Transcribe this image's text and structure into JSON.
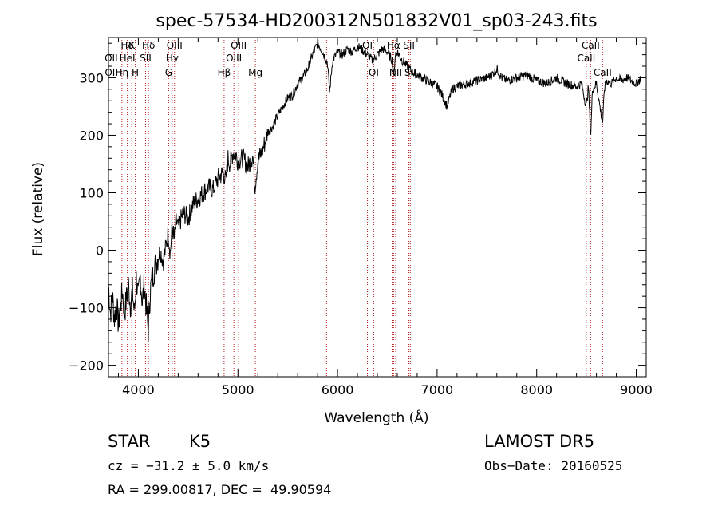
{
  "chart_data": {
    "type": "line",
    "title": "spec-57534-HD200312N501832V01_sp03-243.fits",
    "xlabel": "Wavelength (Å)",
    "ylabel": "Flux (relative)",
    "xlim": [
      3700,
      9100
    ],
    "ylim": [
      -220,
      370
    ],
    "xticks": [
      4000,
      5000,
      6000,
      7000,
      8000,
      9000
    ],
    "yticks": [
      -200,
      -100,
      0,
      100,
      200,
      300
    ],
    "grid": false,
    "line_color": "#000000",
    "marker_color": "#b22222",
    "series": [
      {
        "values": [
          [
            3700,
            -60
          ],
          [
            3720,
            -110
          ],
          [
            3740,
            -80
          ],
          [
            3760,
            -120
          ],
          [
            3780,
            -90
          ],
          [
            3800,
            -130
          ],
          [
            3820,
            -100
          ],
          [
            3840,
            -70
          ],
          [
            3860,
            -110
          ],
          [
            3880,
            -85
          ],
          [
            3900,
            -60
          ],
          [
            3920,
            -95
          ],
          [
            3940,
            -70
          ],
          [
            3960,
            -110
          ],
          [
            3980,
            -50
          ],
          [
            4000,
            -85
          ],
          [
            4020,
            -45
          ],
          [
            4040,
            -90
          ],
          [
            4060,
            -60
          ],
          [
            4080,
            -100
          ],
          [
            4100,
            -140
          ],
          [
            4120,
            -70
          ],
          [
            4150,
            -40
          ],
          [
            4180,
            -20
          ],
          [
            4200,
            -10
          ],
          [
            4220,
            0
          ],
          [
            4250,
            -20
          ],
          [
            4280,
            10
          ],
          [
            4300,
            30
          ],
          [
            4320,
            -5
          ],
          [
            4340,
            40
          ],
          [
            4360,
            20
          ],
          [
            4380,
            50
          ],
          [
            4400,
            40
          ],
          [
            4450,
            65
          ],
          [
            4500,
            55
          ],
          [
            4550,
            80
          ],
          [
            4600,
            90
          ],
          [
            4650,
            100
          ],
          [
            4700,
            110
          ],
          [
            4750,
            105
          ],
          [
            4800,
            125
          ],
          [
            4850,
            135
          ],
          [
            4880,
            120
          ],
          [
            4900,
            160
          ],
          [
            4920,
            150
          ],
          [
            4950,
            170
          ],
          [
            4980,
            165
          ],
          [
            5000,
            155
          ],
          [
            5050,
            160
          ],
          [
            5100,
            145
          ],
          [
            5150,
            165
          ],
          [
            5170,
            110
          ],
          [
            5200,
            155
          ],
          [
            5250,
            175
          ],
          [
            5300,
            205
          ],
          [
            5350,
            215
          ],
          [
            5400,
            235
          ],
          [
            5450,
            250
          ],
          [
            5500,
            265
          ],
          [
            5550,
            270
          ],
          [
            5600,
            290
          ],
          [
            5650,
            300
          ],
          [
            5700,
            315
          ],
          [
            5750,
            340
          ],
          [
            5800,
            360
          ],
          [
            5850,
            345
          ],
          [
            5900,
            325
          ],
          [
            5920,
            275
          ],
          [
            5950,
            330
          ],
          [
            6000,
            345
          ],
          [
            6050,
            340
          ],
          [
            6100,
            350
          ],
          [
            6150,
            345
          ],
          [
            6200,
            355
          ],
          [
            6250,
            348
          ],
          [
            6300,
            340
          ],
          [
            6350,
            330
          ],
          [
            6400,
            340
          ],
          [
            6450,
            350
          ],
          [
            6500,
            345
          ],
          [
            6550,
            330
          ],
          [
            6563,
            300
          ],
          [
            6580,
            340
          ],
          [
            6600,
            345
          ],
          [
            6650,
            330
          ],
          [
            6700,
            320
          ],
          [
            6750,
            310
          ],
          [
            6800,
            305
          ],
          [
            6850,
            300
          ],
          [
            6900,
            295
          ],
          [
            6950,
            290
          ],
          [
            7000,
            285
          ],
          [
            7050,
            270
          ],
          [
            7100,
            250
          ],
          [
            7150,
            280
          ],
          [
            7200,
            285
          ],
          [
            7300,
            290
          ],
          [
            7400,
            295
          ],
          [
            7500,
            300
          ],
          [
            7550,
            305
          ],
          [
            7600,
            315
          ],
          [
            7650,
            300
          ],
          [
            7700,
            295
          ],
          [
            7800,
            300
          ],
          [
            7900,
            305
          ],
          [
            8000,
            295
          ],
          [
            8100,
            290
          ],
          [
            8200,
            300
          ],
          [
            8300,
            290
          ],
          [
            8400,
            285
          ],
          [
            8450,
            290
          ],
          [
            8498,
            250
          ],
          [
            8520,
            285
          ],
          [
            8542,
            195
          ],
          [
            8560,
            280
          ],
          [
            8600,
            290
          ],
          [
            8662,
            220
          ],
          [
            8680,
            280
          ],
          [
            8700,
            295
          ],
          [
            8750,
            290
          ],
          [
            8800,
            300
          ],
          [
            8850,
            295
          ],
          [
            8900,
            300
          ],
          [
            8950,
            295
          ],
          [
            9000,
            290
          ],
          [
            9050,
            300
          ]
        ]
      }
    ],
    "line_markers": [
      {
        "label": "Hδ",
        "x": 3889,
        "row": 1
      },
      {
        "label": "OII",
        "x": 3727,
        "row": 2
      },
      {
        "label": "OII",
        "x": 3729,
        "row": 3
      },
      {
        "label": "K",
        "x": 3934,
        "row": 1
      },
      {
        "label": "HeI",
        "x": 3889,
        "row": 2
      },
      {
        "label": "Hη",
        "x": 3835,
        "row": 3
      },
      {
        "label": "H",
        "x": 3969,
        "row": 3
      },
      {
        "label": "Hδ",
        "x": 4102,
        "row": 1
      },
      {
        "label": "SII",
        "x": 4072,
        "row": 2
      },
      {
        "label": "OIII",
        "x": 4363,
        "row": 1
      },
      {
        "label": "Hγ",
        "x": 4340,
        "row": 2
      },
      {
        "label": "G",
        "x": 4304,
        "row": 3
      },
      {
        "label": "OIII",
        "x": 5007,
        "row": 1
      },
      {
        "label": "OIII",
        "x": 4959,
        "row": 2
      },
      {
        "label": "Hβ",
        "x": 4861,
        "row": 3
      },
      {
        "label": "Mg",
        "x": 5175,
        "row": 3
      },
      {
        "label": "OI",
        "x": 6300,
        "row": 1
      },
      {
        "label": "OI",
        "x": 6363,
        "row": 3
      },
      {
        "label": "Hα",
        "x": 6563,
        "row": 1
      },
      {
        "label": "SII",
        "x": 6717,
        "row": 1
      },
      {
        "label": "NII",
        "x": 6584,
        "row": 3
      },
      {
        "label": "SII",
        "x": 6731,
        "row": 3
      },
      {
        "label": "CaII",
        "x": 8542,
        "row": 1
      },
      {
        "label": "CaII",
        "x": 8498,
        "row": 2
      },
      {
        "label": "CaII",
        "x": 8662,
        "row": 3
      }
    ],
    "extra_marker_lines": [
      3835,
      3889,
      3934,
      3969,
      4072,
      4102,
      4304,
      4340,
      4363,
      4861,
      4959,
      5007,
      5175,
      5890,
      6300,
      6363,
      6548,
      6563,
      6584,
      6717,
      6731,
      8498,
      8542,
      8662
    ]
  },
  "info": {
    "object_class": "STAR",
    "subclass": "K5",
    "survey": "LAMOST DR5",
    "redshift": "cz = −31.2 ± 5.0 km/s",
    "obs_date": "Obs−Date: 20160525",
    "coords": "RA = 299.00817, DEC =  49.90594"
  }
}
